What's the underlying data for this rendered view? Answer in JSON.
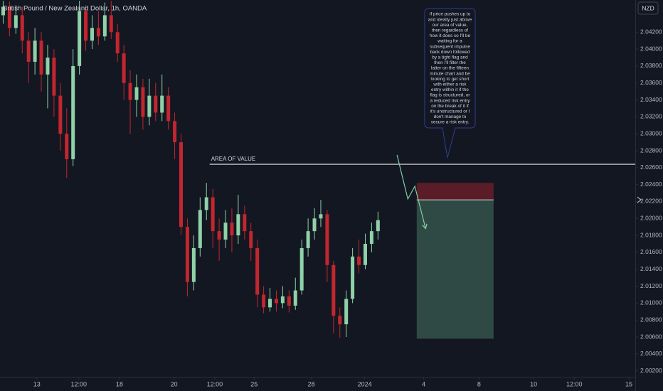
{
  "chart_data": {
    "type": "candlestick",
    "title": "British Pound / New Zealand Dollar, 1h, OANDA",
    "currency": "NZD",
    "up_color": "#8fd1a8",
    "down_color": "#c2262e",
    "xlim": [
      0,
      100
    ],
    "ylim": [
      2.0013,
      2.0458
    ],
    "xticks": [
      {
        "value": 5.8,
        "label": "13"
      },
      {
        "value": 12.4,
        "label": "12:00"
      },
      {
        "value": 18.8,
        "label": "18"
      },
      {
        "value": 27.4,
        "label": "20"
      },
      {
        "value": 33.8,
        "label": "12:00"
      },
      {
        "value": 40.0,
        "label": "25"
      },
      {
        "value": 49.0,
        "label": "28"
      },
      {
        "value": 57.4,
        "label": "2024"
      },
      {
        "value": 66.7,
        "label": "4"
      },
      {
        "value": 75.4,
        "label": "8"
      },
      {
        "value": 84.0,
        "label": "10"
      },
      {
        "value": 90.4,
        "label": "12:00"
      },
      {
        "value": 99.0,
        "label": "15"
      }
    ],
    "yticks": [
      {
        "value": 2.042,
        "label": "2.04200"
      },
      {
        "value": 2.04,
        "label": "2.04000"
      },
      {
        "value": 2.038,
        "label": "2.03800"
      },
      {
        "value": 2.036,
        "label": "2.03600"
      },
      {
        "value": 2.034,
        "label": "2.03400"
      },
      {
        "value": 2.032,
        "label": "2.03200"
      },
      {
        "value": 2.03,
        "label": "2.03000"
      },
      {
        "value": 2.028,
        "label": "2.02800"
      },
      {
        "value": 2.026,
        "label": "2.02600"
      },
      {
        "value": 2.024,
        "label": "2.02400"
      },
      {
        "value": 2.022,
        "label": "2.02200"
      },
      {
        "value": 2.02,
        "label": "2.02000"
      },
      {
        "value": 2.018,
        "label": "2.01800"
      },
      {
        "value": 2.016,
        "label": "2.01600"
      },
      {
        "value": 2.014,
        "label": "2.01400"
      },
      {
        "value": 2.012,
        "label": "2.01200"
      },
      {
        "value": 2.01,
        "label": "2.01000"
      },
      {
        "value": 2.008,
        "label": "2.00800"
      },
      {
        "value": 2.006,
        "label": "2.00600"
      },
      {
        "value": 2.004,
        "label": "2.00400"
      },
      {
        "value": 2.002,
        "label": "2.00200"
      }
    ],
    "open": [
      2.044,
      2.045,
      2.0425,
      2.044,
      2.041,
      2.0385,
      2.041,
      2.037,
      2.039,
      2.0345,
      2.03,
      2.027,
      2.038,
      2.0445,
      2.041,
      2.0425,
      2.0415,
      2.044,
      2.042,
      2.0395,
      2.036,
      2.034,
      2.0355,
      2.032,
      2.0345,
      2.0325,
      2.0345,
      2.0315,
      2.029,
      2.019,
      2.0125,
      2.0165,
      2.021,
      2.0225,
      2.0185,
      2.0175,
      2.0195,
      2.018,
      2.0205,
      2.0185,
      2.0165,
      2.011,
      2.0095,
      2.0105,
      2.01,
      2.0108,
      2.0097,
      2.0115,
      2.0165,
      2.0185,
      2.02,
      2.0205,
      2.0145,
      2.0085,
      2.0075,
      2.0105,
      2.0155,
      2.0145,
      2.017,
      2.0185
    ],
    "high": [
      2.0457,
      2.0456,
      2.0452,
      2.045,
      2.042,
      2.0425,
      2.042,
      2.0405,
      2.04,
      2.036,
      2.033,
      2.04,
      2.0457,
      2.0452,
      2.044,
      2.0445,
      2.0455,
      2.0457,
      2.043,
      2.0405,
      2.0375,
      2.037,
      2.0365,
      2.0365,
      2.036,
      2.037,
      2.0355,
      2.0325,
      2.03,
      2.02,
      2.018,
      2.0225,
      2.0242,
      2.0235,
      2.02,
      2.021,
      2.0212,
      2.0228,
      2.0215,
      2.0195,
      2.0175,
      2.012,
      2.0118,
      2.0115,
      2.012,
      2.0115,
      2.013,
      2.0175,
      2.02,
      2.0212,
      2.0222,
      2.021,
      2.015,
      2.0095,
      2.0115,
      2.0165,
      2.0175,
      2.0182,
      2.0195,
      2.0208
    ],
    "low": [
      2.043,
      2.0415,
      2.0418,
      2.0395,
      2.036,
      2.037,
      2.035,
      2.033,
      2.032,
      2.028,
      2.0248,
      2.0262,
      2.037,
      2.0398,
      2.04,
      2.0405,
      2.041,
      2.0412,
      2.0385,
      2.034,
      2.03,
      2.032,
      2.0305,
      2.031,
      2.0315,
      2.0315,
      2.0305,
      2.027,
      2.018,
      2.0108,
      2.0115,
      2.0155,
      2.0198,
      2.0165,
      2.015,
      2.0165,
      2.016,
      2.017,
      2.0175,
      2.015,
      2.0095,
      2.0088,
      2.009,
      2.009,
      2.0094,
      2.0089,
      2.0092,
      2.011,
      2.0155,
      2.0175,
      2.019,
      2.0125,
      2.0064,
      2.0059,
      2.006,
      2.01,
      2.0135,
      2.014,
      2.016,
      2.0175
    ],
    "close": [
      2.045,
      2.0425,
      2.044,
      2.041,
      2.0385,
      2.041,
      2.037,
      2.039,
      2.0345,
      2.03,
      2.027,
      2.038,
      2.0445,
      2.041,
      2.0425,
      2.0415,
      2.044,
      2.042,
      2.0395,
      2.036,
      2.034,
      2.0355,
      2.032,
      2.0345,
      2.0325,
      2.0345,
      2.0315,
      2.029,
      2.019,
      2.0125,
      2.0165,
      2.021,
      2.0225,
      2.0185,
      2.0175,
      2.0195,
      2.018,
      2.0205,
      2.0185,
      2.0165,
      2.011,
      2.0095,
      2.0105,
      2.01,
      2.0108,
      2.0097,
      2.0115,
      2.0165,
      2.0185,
      2.02,
      2.0205,
      2.0145,
      2.0085,
      2.0075,
      2.0105,
      2.0155,
      2.0145,
      2.017,
      2.0185,
      2.0198
    ],
    "level": {
      "label": "AREA OF VALUE",
      "value": 2.0264,
      "x_start": 33.0,
      "color": "#e8e8e8"
    },
    "position": {
      "x_start": 65.6,
      "x_end": 77.7,
      "entry": 2.0222,
      "stop": 2.0242,
      "target": 2.0058,
      "stop_color": "#5a1d27",
      "target_color": "#2f4a45"
    },
    "arrow": {
      "x": [
        62.5,
        64.2,
        65.3,
        67.0
      ],
      "y": [
        2.0275,
        2.0223,
        2.0238,
        2.0188
      ],
      "color": "#7fcfa5"
    },
    "note": {
      "lines": [
        "If price pushes up to",
        "and ideally just above",
        "our area of value,",
        "then regardless of",
        "how it does so I'll be",
        "waiting for a",
        "subsequent impulse",
        "back down followed",
        "by a tight flag and",
        "then I'll filter the",
        "latter on the fifteen",
        "minute chart and be",
        "looking to get short",
        "with either a risk",
        "entry within it if the",
        "flag is structured, or",
        "a reduced risk entry",
        "on the break of it if",
        "it's unstructured or I",
        "don't manage to",
        "secure a risk entry."
      ]
    }
  }
}
